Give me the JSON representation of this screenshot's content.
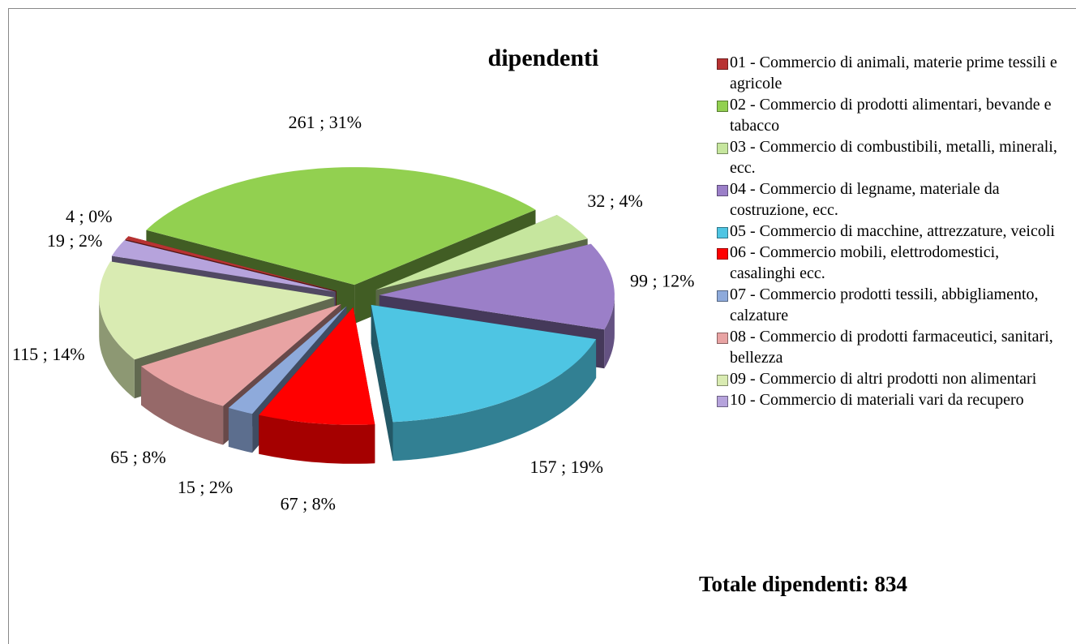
{
  "chart_data": {
    "type": "pie",
    "title": "dipendenti",
    "categories": [
      "01 - Commercio di animali, materie prime tessili e agricole",
      "02 - Commercio di prodotti alimentari, bevande e tabacco",
      "03 - Commercio di combustibili, metalli, minerali, ecc.",
      "04 - Commercio di legname, materiale da costruzione, ecc.",
      "05 - Commercio di macchine, attrezzature, veicoli",
      "06 - Commercio mobili, elettrodomestici, casalinghi ecc.",
      "07 - Commercio prodotti tessili, abbigliamento, calzature",
      "08 - Commercio di prodotti farmaceutici, sanitari, bellezza",
      "09 - Commercio di altri prodotti non alimentari",
      "10 - Commercio di materiali vari da recupero"
    ],
    "values": [
      4,
      261,
      32,
      99,
      157,
      67,
      15,
      65,
      115,
      19
    ],
    "value_labels": [
      "4 ; 0%",
      "261 ; 31%",
      "32 ; 4%",
      "99 ; 12%",
      "157 ; 19%",
      "67 ; 8%",
      "15 ; 2%",
      "65 ; 8%",
      "115 ; 14%",
      "19 ; 2%"
    ],
    "colors": [
      "#b83232",
      "#92d050",
      "#c6e69e",
      "#9b7fc8",
      "#4ec5e3",
      "#ff0000",
      "#8eaadb",
      "#e8a3a3",
      "#d9ebb2",
      "#b6a3dc"
    ],
    "legend": "right",
    "annotation": "Totale dipendenti: 834"
  }
}
